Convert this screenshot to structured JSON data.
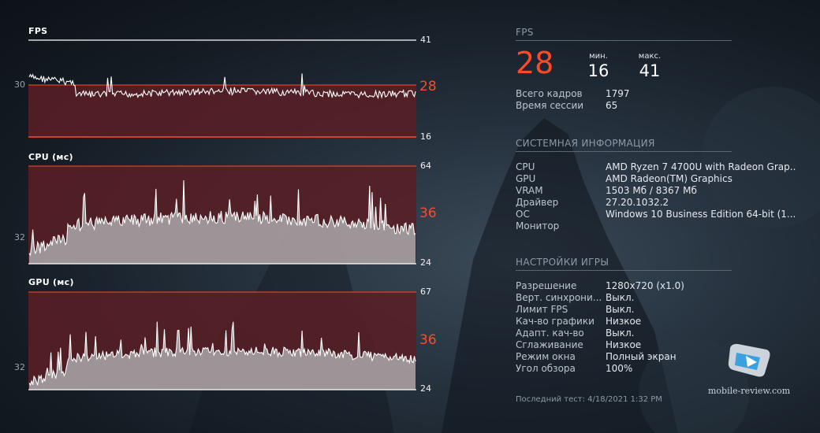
{
  "charts": {
    "fps": {
      "title": "FPS",
      "max": "41",
      "min": "16",
      "current": "28",
      "avg": "30"
    },
    "cpu": {
      "title": "CPU (мс)",
      "max": "64",
      "min": "24",
      "current": "36",
      "avg": "32"
    },
    "gpu": {
      "title": "GPU (мс)",
      "max": "67",
      "min": "24",
      "current": "36",
      "avg": "32"
    }
  },
  "fps_section": {
    "title": "FPS",
    "current": "28",
    "min_label": "мин.",
    "min_value": "16",
    "max_label": "макс.",
    "max_value": "41",
    "rows": [
      {
        "key": "Всего кадров",
        "value": "1797"
      },
      {
        "key": "Время сессии",
        "value": "65"
      }
    ]
  },
  "system_section": {
    "title": "СИСТЕМНАЯ ИНФОРМАЦИЯ",
    "rows": [
      {
        "key": "CPU",
        "value": "AMD Ryzen 7 4700U with Radeon Grap..."
      },
      {
        "key": "GPU",
        "value": "AMD Radeon(TM) Graphics"
      },
      {
        "key": "VRAM",
        "value": "1503 Мб / 8367 Мб"
      },
      {
        "key": "Драйвер",
        "value": "27.20.1032.2"
      },
      {
        "key": "ОС",
        "value": "Windows 10 Business Edition 64-bit (1..."
      },
      {
        "key": "Монитор",
        "value": ""
      }
    ]
  },
  "game_section": {
    "title": "НАСТРОЙКИ ИГРЫ",
    "rows": [
      {
        "key": "Разрешение",
        "value": "1280x720 (x1.0)"
      },
      {
        "key": "Верт. синхрони...",
        "value": "Выкл."
      },
      {
        "key": "Лимит FPS",
        "value": "Выкл."
      },
      {
        "key": "Кач-во графики",
        "value": "Низкое"
      },
      {
        "key": "Адапт. кач-во",
        "value": "Выкл."
      },
      {
        "key": "Сглаживание",
        "value": "Низкое"
      },
      {
        "key": "Режим окна",
        "value": "Полный экран"
      },
      {
        "key": "Угол обзора",
        "value": "100%"
      }
    ]
  },
  "footer": "Последний тест: 4/18/2021 1:32 PM",
  "watermark": "mobile-review.com",
  "colors": {
    "accent": "#ff4a2a",
    "band": "#5a1e25",
    "area": "#b8bcbf"
  }
}
